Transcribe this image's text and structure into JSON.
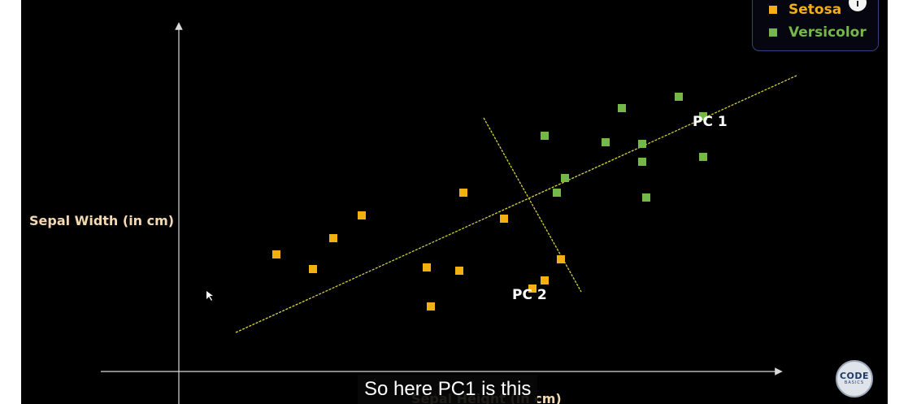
{
  "chart_data": {
    "type": "scatter",
    "xlabel": "Sepal Height (in cm)",
    "ylabel": "Sepal Width (in cm)",
    "series": [
      {
        "name": "Setosa",
        "color": "#f4b012",
        "points": [
          [
            1.2,
            3.6
          ],
          [
            1.65,
            3.15
          ],
          [
            1.9,
            4.1
          ],
          [
            2.25,
            4.8
          ],
          [
            3.05,
            3.2
          ],
          [
            3.1,
            2.0
          ],
          [
            3.45,
            3.1
          ],
          [
            3.5,
            5.5
          ],
          [
            4.35,
            2.55
          ],
          [
            4.5,
            2.8
          ],
          [
            4.7,
            3.45
          ],
          [
            4.0,
            4.7
          ]
        ]
      },
      {
        "name": "Versicolor",
        "color": "#74b84a",
        "points": [
          [
            4.5,
            7.25
          ],
          [
            4.65,
            5.5
          ],
          [
            4.75,
            5.95
          ],
          [
            5.25,
            7.05
          ],
          [
            5.45,
            8.1
          ],
          [
            5.7,
            7.0
          ],
          [
            5.7,
            6.45
          ],
          [
            5.75,
            5.35
          ],
          [
            6.15,
            8.45
          ],
          [
            6.45,
            7.85
          ],
          [
            6.45,
            6.6
          ]
        ]
      }
    ],
    "lines": [
      {
        "name": "PC 1",
        "from": [
          0.7,
          1.2
        ],
        "to": [
          7.6,
          9.1
        ]
      },
      {
        "name": "PC 2",
        "from": [
          3.75,
          7.8
        ],
        "to": [
          4.95,
          2.45
        ]
      }
    ],
    "legend": "top-right",
    "grid": false
  },
  "labels": {
    "pc1": "PC 1",
    "pc2": "PC 2",
    "ylabel": "Sepal Width (in cm)",
    "xlabel": "Sepal Height (in cm)"
  },
  "legend": {
    "setosa": "Setosa",
    "versicolor": "Versicolor",
    "setosa_color": "#f4b012",
    "versicolor_color": "#74b84a"
  },
  "caption": "So here PC1 is this",
  "info_icon": "i",
  "logo": {
    "line1": "CODE",
    "line2": "BASICS"
  },
  "colors": {
    "background": "#000000",
    "axis": "#d9d9d9",
    "pc_line": "#d6d23a",
    "label_text": "#f3d8b0"
  }
}
